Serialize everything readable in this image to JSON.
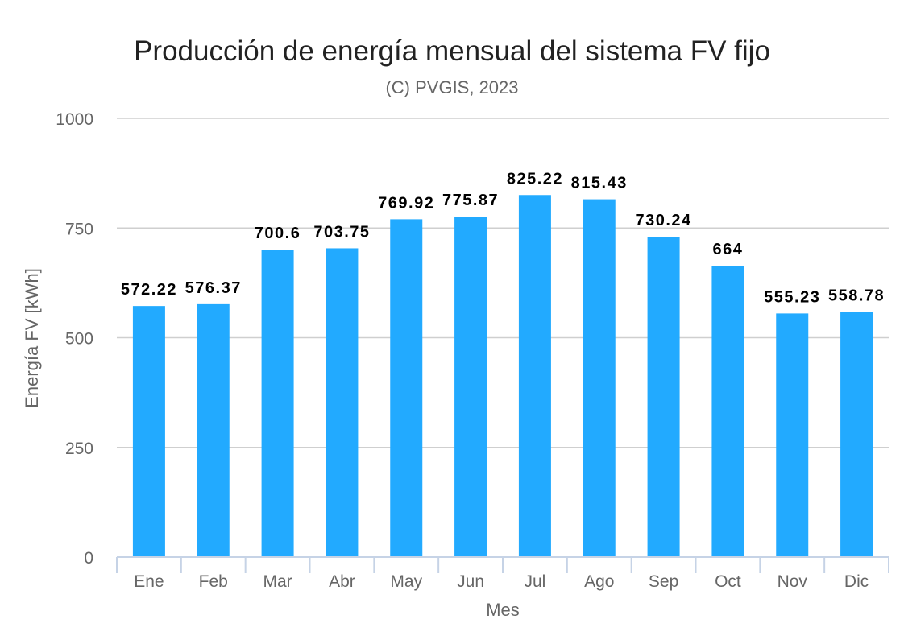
{
  "chart_data": {
    "type": "bar",
    "title": "Producción de energía mensual del sistema FV fijo",
    "subtitle": "(C) PVGIS, 2023",
    "xlabel": "Mes",
    "ylabel": "Energía FV [kWh]",
    "categories": [
      "Ene",
      "Feb",
      "Mar",
      "Abr",
      "May",
      "Jun",
      "Jul",
      "Ago",
      "Sep",
      "Oct",
      "Nov",
      "Dic"
    ],
    "values": [
      572.22,
      576.37,
      700.6,
      703.75,
      769.92,
      775.87,
      825.22,
      815.43,
      730.24,
      664,
      555.23,
      558.78
    ],
    "data_labels": [
      "572.22",
      "576.37",
      "700.6",
      "703.75",
      "769.92",
      "775.87",
      "825.22",
      "815.43",
      "730.24",
      "664",
      "555.23",
      "558.78"
    ],
    "ylim": [
      0,
      1000
    ],
    "yticks": [
      0,
      250,
      500,
      750,
      1000
    ],
    "grid": true,
    "legend": "none",
    "bar_color": "#22AAFF"
  }
}
